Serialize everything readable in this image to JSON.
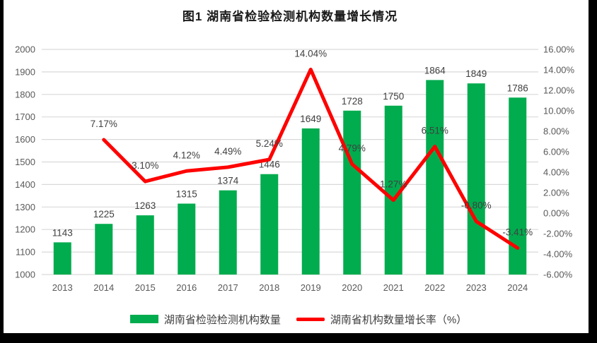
{
  "title": "图1 湖南省检验检测机构数量增长情况",
  "colors": {
    "bar": "#00AC4E",
    "line": "#FF0000",
    "grid": "#D9D9D9",
    "axis_text": "#595959",
    "data_label": "#404040",
    "frame": "#000000"
  },
  "chart_data": {
    "type": "bar",
    "subtype": "combo-bar-line",
    "title": "图1 湖南省检验检测机构数量增长情况",
    "categories": [
      "2013",
      "2014",
      "2015",
      "2016",
      "2017",
      "2018",
      "2019",
      "2020",
      "2021",
      "2022",
      "2023",
      "2024"
    ],
    "series": [
      {
        "name": "湖南省检验检测机构数量",
        "type": "bar",
        "axis": "left",
        "color": "#00AC4E",
        "values": [
          1143,
          1225,
          1263,
          1315,
          1374,
          1446,
          1649,
          1728,
          1750,
          1864,
          1849,
          1786
        ],
        "labels": [
          "1143",
          "1225",
          "1263",
          "1315",
          "1374",
          "1446",
          "1649",
          "1728",
          "1750",
          "1864",
          "1849",
          "1786"
        ]
      },
      {
        "name": "湖南省机构数量增长率（%）",
        "type": "line",
        "axis": "right",
        "color": "#FF0000",
        "values": [
          null,
          7.17,
          3.1,
          4.12,
          4.49,
          5.24,
          14.04,
          4.79,
          1.27,
          6.51,
          -0.8,
          -3.41
        ],
        "labels": [
          null,
          "7.17%",
          "3.10%",
          "4.12%",
          "4.49%",
          "5.24%",
          "14.04%",
          "4.79%",
          "1.27%",
          "6.51%",
          "-0.80%",
          "-3.41%"
        ]
      }
    ],
    "left_axis": {
      "min": 1000,
      "max": 2000,
      "step": 100,
      "ticks": [
        "2000",
        "1900",
        "1800",
        "1700",
        "1600",
        "1500",
        "1400",
        "1300",
        "1200",
        "1100",
        "1000"
      ]
    },
    "right_axis": {
      "min": -6,
      "max": 16,
      "step": 2,
      "ticks": [
        "16.00%",
        "14.00%",
        "12.00%",
        "10.00%",
        "8.00%",
        "6.00%",
        "4.00%",
        "2.00%",
        "0.00%",
        "-2.00%",
        "-4.00%",
        "-6.00%"
      ]
    },
    "grid": true,
    "legend_position": "bottom"
  },
  "legend": {
    "bar_label": "湖南省检验检测机构数量",
    "line_label": "湖南省机构数量增长率（%）"
  }
}
